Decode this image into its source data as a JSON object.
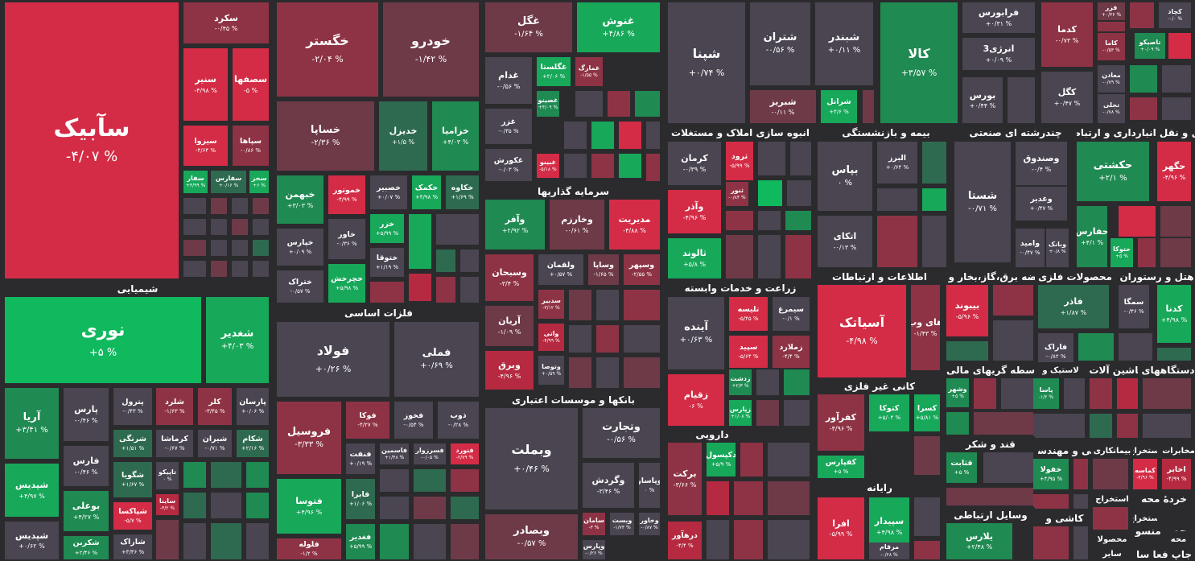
{
  "colors": {
    "R3": "#d42c46",
    "R2": "#b52a40",
    "R1": "#8e3345",
    "R0": "#6e3a48",
    "N": "#4a4551",
    "G0": "#2e6a4f",
    "G1": "#1f8a52",
    "G2": "#17a85a",
    "G3": "#10b85e",
    "background": "#2b2b2e"
  },
  "sectors": [
    {
      "name": "شیمیایی"
    },
    {
      "name": "فلزات اساسی"
    },
    {
      "name": "سرمایه گذاریها"
    },
    {
      "name": "بانکها و موسسات اعتباری"
    },
    {
      "name": "انبوه سازی املاک و مستغلات"
    },
    {
      "name": "زراعت و خدمات وابسته"
    },
    {
      "name": "دارویی"
    },
    {
      "name": "بیمه و بازنشستگی"
    },
    {
      "name": "کانی غیر فلزی"
    },
    {
      "name": "رایانه"
    },
    {
      "name": "اطلاعات و ارتباطات"
    },
    {
      "name": "چندرشته ای صنعتی"
    },
    {
      "name": "عرضه برق،گاز،بخار و آب"
    },
    {
      "name": "واسطه گریهای مالی و"
    },
    {
      "name": "قند و شکر"
    },
    {
      "name": "وسایل ارتباطی"
    },
    {
      "name": "حمل و نقل انبارداری و ارتباطات"
    },
    {
      "name": "محصولات فلزی"
    },
    {
      "name": "هتل و رستوران"
    },
    {
      "name": "لاستیک و"
    },
    {
      "name": "ماشین آلات و"
    },
    {
      "name": "دستگاههای"
    },
    {
      "name": "فنی و مهندسی"
    },
    {
      "name": "کاشی و"
    },
    {
      "name": "استخراج"
    },
    {
      "name": "مخابرات"
    },
    {
      "name": "بیمانکاری"
    },
    {
      "name": "استخراج"
    },
    {
      "name": "خردۀ محه"
    },
    {
      "name": "استخراج"
    },
    {
      "name": "محصولا"
    },
    {
      "name": "محصر منسو"
    },
    {
      "name": "محه"
    },
    {
      "name": "جاپ فعا سا"
    },
    {
      "name": "سایر"
    }
  ],
  "tiles": [
    {
      "name": "سآبیک",
      "change": "-۴/۰۷ %"
    },
    {
      "name": "سکرد",
      "change": "-۰/۴۵ %"
    },
    {
      "name": "سنیر",
      "change": "-۴/۹۸ %"
    },
    {
      "name": "سصفها",
      "change": "-۵ %"
    },
    {
      "name": "سیزوا",
      "change": "-۴/۶۴ %"
    },
    {
      "name": "سپاها",
      "change": "-۰/۸۶ %"
    },
    {
      "name": "سفار",
      "change": "+۴/۹۹ %"
    },
    {
      "name": "سفارس",
      "change": "+۰/۱۶ %"
    },
    {
      "name": "سخز",
      "change": "+۶ %"
    },
    {
      "name": "نوری",
      "change": "+۵ %"
    },
    {
      "name": "شغدیر",
      "change": "+۴/۰۳ %"
    },
    {
      "name": "آریا",
      "change": "+۳/۴۱ %"
    },
    {
      "name": "پارس",
      "change": "-۰/۴۶ %"
    },
    {
      "name": "پترول",
      "change": "-۰/۴۳ %"
    },
    {
      "name": "شلرد",
      "change": "-۱/۶۳ %"
    },
    {
      "name": "کلر",
      "change": "-۳/۴۵ %"
    },
    {
      "name": "پارسان",
      "change": "+۰/۰۶ %"
    },
    {
      "name": "شرنگی",
      "change": "+۱/۵۱ %"
    },
    {
      "name": "کرماشا",
      "change": "-۰/۶۷ %"
    },
    {
      "name": "شیران",
      "change": "-۰/۷۱ %"
    },
    {
      "name": "شکام",
      "change": "+۲/۱۶ %"
    },
    {
      "name": "فارس",
      "change": "-۰/۴۶ %"
    },
    {
      "name": "شگویا",
      "change": "+۱/۶۷ %"
    },
    {
      "name": "تاپیکو",
      "change": "۰ %"
    },
    {
      "name": "شپدیس",
      "change": "+۴/۹۷ %"
    },
    {
      "name": "بوعلی",
      "change": "+۴/۲۷ %"
    },
    {
      "name": "شپاکسا",
      "change": "-۵/۷ %"
    },
    {
      "name": "ساینا",
      "change": "-۳/۲ %"
    },
    {
      "name": "شپدیس",
      "change": "+۰/۶۲ %"
    },
    {
      "name": "شکربن",
      "change": "+۲/۴۶ %"
    },
    {
      "name": "شاراک",
      "change": "+۳/۴۶ %"
    },
    {
      "name": "خگستر",
      "change": "-۲/۰۴ %"
    },
    {
      "name": "خودرو",
      "change": "-۱/۴۲ %"
    },
    {
      "name": "خساپا",
      "change": "-۲/۳۶ %"
    },
    {
      "name": "خدیزل",
      "change": "+۱/۵ %"
    },
    {
      "name": "خزامیا",
      "change": "+۴/۰۳ %"
    },
    {
      "name": "خبهمن",
      "change": "+۳/۰۳ %"
    },
    {
      "name": "خموتور",
      "change": "-۴/۹۹ %"
    },
    {
      "name": "خصبیر",
      "change": "+۰/۰۷ %"
    },
    {
      "name": "خکمک",
      "change": "+۴/۹۸ %"
    },
    {
      "name": "خکاوه",
      "change": "+۱/۶۹ %"
    },
    {
      "name": "خپارس",
      "change": "+۰/۰۹ %"
    },
    {
      "name": "خاور",
      "change": "-۰/۳۶ %"
    },
    {
      "name": "خزر",
      "change": "+۵/۹۹ %"
    },
    {
      "name": "ختوقا",
      "change": "+۱/۱۹ %"
    },
    {
      "name": "ختراک",
      "change": "-۰/۵۷ %"
    },
    {
      "name": "خچرخش",
      "change": "+۵/۹۸ %"
    },
    {
      "name": "فولاد",
      "change": "+۰/۲۶ %"
    },
    {
      "name": "فملی",
      "change": "+۰/۶۹ %"
    },
    {
      "name": "فروسیل",
      "change": "-۳/۳۳ %"
    },
    {
      "name": "فوکا",
      "change": "-۴/۲۷ %"
    },
    {
      "name": "فخوز",
      "change": "-۰/۵۴ %"
    },
    {
      "name": "ذوب",
      "change": "-۰/۲۸ %"
    },
    {
      "name": "فنفت",
      "change": "+۰/۱۹ %"
    },
    {
      "name": "فاسمین",
      "change": "+۱/۴۸ %"
    },
    {
      "name": "فسرزوار",
      "change": "-۰/۰۵ %"
    },
    {
      "name": "فنورد",
      "change": "-۲/۷۹ %"
    },
    {
      "name": "فتوسا",
      "change": "+۴/۹۶ %"
    },
    {
      "name": "فابرا",
      "change": "+۱/۰۶ %"
    },
    {
      "name": "فلوله",
      "change": "-۱/۲ %"
    },
    {
      "name": "فغدیر",
      "change": "+۵/۹۹ %"
    },
    {
      "name": "غگل",
      "change": "-۱/۶۴ %"
    },
    {
      "name": "غنوش",
      "change": "+۴/۸۶ %"
    },
    {
      "name": "غدام",
      "change": "-۰/۵۶ %"
    },
    {
      "name": "غگلستا",
      "change": "+۲/۰۶ %"
    },
    {
      "name": "غمارگ",
      "change": "-۱/۵۵ %"
    },
    {
      "name": "غصینو",
      "change": "+۴/۰۹ %"
    },
    {
      "name": "غزر",
      "change": "-۰/۳۵ %"
    },
    {
      "name": "غبینو",
      "change": "-۵/۱۸ %"
    },
    {
      "name": "غکورش",
      "change": "-۰/۰۳ %"
    },
    {
      "name": "وآفر",
      "change": "+۲/۹۲ %"
    },
    {
      "name": "وخارزم",
      "change": "-۰/۶۱ %"
    },
    {
      "name": "مدیریت",
      "change": "-۴/۸۸ %"
    },
    {
      "name": "وسبحان",
      "change": "-۳/۴ %"
    },
    {
      "name": "ولقمان",
      "change": "+۰/۵۷ %"
    },
    {
      "name": "وساپا",
      "change": "-۱/۶۵ %"
    },
    {
      "name": "وسپهر",
      "change": "-۲/۵۵ %"
    },
    {
      "name": "سدبیر",
      "change": "-۳/۱۲ %"
    },
    {
      "name": "آریان",
      "change": "-۱/۰۹ %"
    },
    {
      "name": "واتی",
      "change": "-۴/۹۹ %"
    },
    {
      "name": "وبرق",
      "change": "-۴/۹۶ %"
    },
    {
      "name": "وتوصا",
      "change": "+۰/۵۹ %"
    },
    {
      "name": "وبملت",
      "change": "+۰/۴۶ %"
    },
    {
      "name": "وتجارت",
      "change": "-۰/۵۶ %"
    },
    {
      "name": "وگردش",
      "change": "-۳/۴۶ %"
    },
    {
      "name": "وپاسار",
      "change": "۰ %"
    },
    {
      "name": "سامان",
      "change": "-۳ %"
    },
    {
      "name": "وبست",
      "change": "-۱/۷۴ %"
    },
    {
      "name": "وخاور",
      "change": "-۰/۸۷ %"
    },
    {
      "name": "وبصادر",
      "change": "-۰/۵۷ %"
    },
    {
      "name": "وپارس",
      "change": "-۰/۲۶ %"
    },
    {
      "name": "شپنا",
      "change": "+۰/۷۴ %"
    },
    {
      "name": "شتران",
      "change": "-۰/۵۶ %"
    },
    {
      "name": "شبندر",
      "change": "+۰/۱۱ %"
    },
    {
      "name": "شبریز",
      "change": "-۰/۱۱ %"
    },
    {
      "name": "شرانل",
      "change": "+۴/۶ %"
    },
    {
      "name": "کالا",
      "change": "+۳/۵۷ %"
    },
    {
      "name": "فرابورس",
      "change": "+۰/۳۱ %"
    },
    {
      "name": "انرژی3",
      "change": "+۰/۰۹ %"
    },
    {
      "name": "بورس",
      "change": "+۰/۴۴ %"
    },
    {
      "name": "کدما",
      "change": "-۰/۷۳ %"
    },
    {
      "name": "کگل",
      "change": "+۰/۴۷ %"
    },
    {
      "name": "فزر",
      "change": "+۰/۳۶ %"
    },
    {
      "name": "کاما",
      "change": "-۰/۵۳ %"
    },
    {
      "name": "معادن",
      "change": "-۰/۷۹ %"
    },
    {
      "name": "تجلی",
      "change": "-۰/۷۸ %"
    },
    {
      "name": "کچاد",
      "change": "-۰/۰ %"
    },
    {
      "name": "تاصیکو",
      "change": "+۰/۰۹ %"
    },
    {
      "name": "کرمان",
      "change": "-۰/۳۹ %"
    },
    {
      "name": "ثرود",
      "change": "-۵/۹۹ %"
    },
    {
      "name": "ثنور",
      "change": "-۰/۸۴ %"
    },
    {
      "name": "وآذر",
      "change": "-۴/۹۶ %"
    },
    {
      "name": "ثالوند",
      "change": "+۵/۸ %"
    },
    {
      "name": "بپاس",
      "change": "۰ %"
    },
    {
      "name": "البرز",
      "change": "+۰/۶۴ %"
    },
    {
      "name": "اتکای",
      "change": "-۰/۱۳ %"
    },
    {
      "name": "شستا",
      "change": "-۰/۷۱ %"
    },
    {
      "name": "وصندوق",
      "change": "-۰/۴ %"
    },
    {
      "name": "وغدیر",
      "change": "+۰/۴۷ %"
    },
    {
      "name": "وامید",
      "change": "-۰/۴۷ %"
    },
    {
      "name": "وبانک",
      "change": "+۰/۸ %"
    },
    {
      "name": "حکشتی",
      "change": "+۲/۱ %"
    },
    {
      "name": "حگهر",
      "change": "-۴/۹۶ %"
    },
    {
      "name": "حفارس",
      "change": "+۴/۱ %"
    },
    {
      "name": "حتوکا",
      "change": "+۵ %"
    },
    {
      "name": "آینده",
      "change": "+۰/۶۳ %"
    },
    {
      "name": "تلیسه",
      "change": "-۵/۴۵ %"
    },
    {
      "name": "سیمرغ",
      "change": "-۰/۱ %"
    },
    {
      "name": "سپید",
      "change": "-۵/۶۴ %"
    },
    {
      "name": "زملارد",
      "change": "-۴/۴ %"
    },
    {
      "name": "زقیام",
      "change": "-۶ %"
    },
    {
      "name": "زدشت",
      "change": "+۲/۳ %"
    },
    {
      "name": "زپارس",
      "change": "+۱/۰۸ %"
    },
    {
      "name": "دکپسول",
      "change": "+۵/۹ %"
    },
    {
      "name": "برکت",
      "change": "-۳/۶۶ %"
    },
    {
      "name": "درهآور",
      "change": "-۴/۴ %"
    },
    {
      "name": "آسیاتک",
      "change": "-۴/۹۸ %"
    },
    {
      "name": "های وب",
      "change": "-۱/۴۳ %"
    },
    {
      "name": "بیبوند",
      "change": "-۵/۹۶ %"
    },
    {
      "name": "کفرآور",
      "change": "-۴/۹۶ %"
    },
    {
      "name": "کتوکا",
      "change": "+۵/۰۴ %"
    },
    {
      "name": "کسرا",
      "change": "+۵/۸۱ %"
    },
    {
      "name": "کفپارس",
      "change": "+۵ %"
    },
    {
      "name": "افرا",
      "change": "-۵/۹۹ %"
    },
    {
      "name": "سپیدار",
      "change": "+۴/۹۸ %"
    },
    {
      "name": "مرقام",
      "change": "-۰/۲۸ %"
    },
    {
      "name": "فاذر",
      "change": "+۱/۸۷ %"
    },
    {
      "name": "فاراک",
      "change": "-۰/۸۲ %"
    },
    {
      "name": "سمگا",
      "change": "-۰/۴۶ %"
    },
    {
      "name": "کدنا",
      "change": "+۴/۹۸ %"
    },
    {
      "name": "قثابت",
      "change": "+۵ %"
    },
    {
      "name": "وشهر",
      "change": "+۵ %"
    },
    {
      "name": "پاسا",
      "change": "-۱/۲ %"
    },
    {
      "name": "خفولا",
      "change": "+۴/۹۵ %"
    },
    {
      "name": "کماسه",
      "change": "-۴/۹۶ %"
    },
    {
      "name": "اخابر",
      "change": "-۴/۹۹ %"
    },
    {
      "name": "یلارس",
      "change": "+۲/۴۸ %"
    }
  ]
}
